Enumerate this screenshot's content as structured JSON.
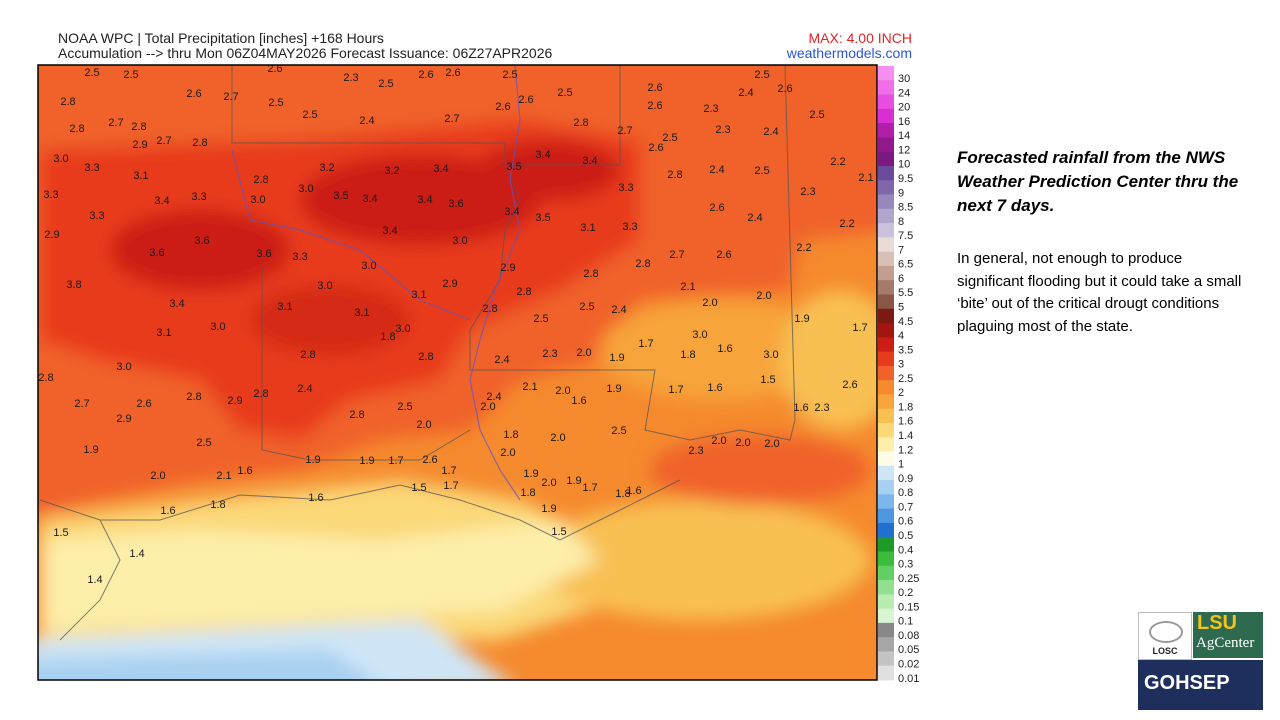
{
  "header": {
    "line1": "NOAA WPC | Total Precipitation [inches] +168 Hours",
    "line2": "Accumulation --> thru Mon 06Z04MAY2026   Forecast Issuance: 06Z27APR2026",
    "max": "MAX: 4.00 INCH",
    "site": "weathermodels.com"
  },
  "side": {
    "heading": "Forecasted rainfall from the NWS Weather Prediction Center thru the next 7 days.",
    "body": "In general, not enough to produce significant flooding but it could take a small ‘bite’ out of the critical drougt conditions plaguing most of the state."
  },
  "logos": {
    "losc": "LOSC",
    "lsu": "LSU",
    "agcenter": "AgCenter",
    "gohsep": "GOHSEP"
  },
  "legend": [
    {
      "label": "30",
      "color": "#f58ff0"
    },
    {
      "label": "24",
      "color": "#f06ee8"
    },
    {
      "label": "20",
      "color": "#e84ee0"
    },
    {
      "label": "16",
      "color": "#d92ed2"
    },
    {
      "label": "14",
      "color": "#b01fa8"
    },
    {
      "label": "12",
      "color": "#901a8c"
    },
    {
      "label": "10",
      "color": "#7a1a80"
    },
    {
      "label": "9.5",
      "color": "#6a4a9a"
    },
    {
      "label": "9",
      "color": "#7e68aa"
    },
    {
      "label": "8.5",
      "color": "#9688bb"
    },
    {
      "label": "8",
      "color": "#b0a6cc"
    },
    {
      "label": "7.5",
      "color": "#cac2dc"
    },
    {
      "label": "7",
      "color": "#e8dcd6"
    },
    {
      "label": "6.5",
      "color": "#d8c0b6"
    },
    {
      "label": "6",
      "color": "#c29e90"
    },
    {
      "label": "5.5",
      "color": "#a67a6a"
    },
    {
      "label": "5",
      "color": "#8a5646"
    },
    {
      "label": "4.5",
      "color": "#7a1a12"
    },
    {
      "label": "4",
      "color": "#a31510"
    },
    {
      "label": "3.5",
      "color": "#cc1e14"
    },
    {
      "label": "3",
      "color": "#e83a1c"
    },
    {
      "label": "2.5",
      "color": "#f0622a"
    },
    {
      "label": "2",
      "color": "#f58a2e"
    },
    {
      "label": "1.8",
      "color": "#f7a43a"
    },
    {
      "label": "1.6",
      "color": "#f8bf52"
    },
    {
      "label": "1.4",
      "color": "#fbd878"
    },
    {
      "label": "1.2",
      "color": "#fdeeaa"
    },
    {
      "label": "1",
      "color": "#fffde8"
    },
    {
      "label": "0.9",
      "color": "#cfe6f7"
    },
    {
      "label": "0.8",
      "color": "#a8d0f0"
    },
    {
      "label": "0.7",
      "color": "#7cb6ea"
    },
    {
      "label": "0.6",
      "color": "#4f96e0"
    },
    {
      "label": "0.5",
      "color": "#2070d0"
    },
    {
      "label": "0.4",
      "color": "#1c9a2a"
    },
    {
      "label": "0.3",
      "color": "#3cbc3c"
    },
    {
      "label": "0.25",
      "color": "#62d062"
    },
    {
      "label": "0.2",
      "color": "#90e090"
    },
    {
      "label": "0.15",
      "color": "#b8ecb0"
    },
    {
      "label": "0.1",
      "color": "#d8f4d0"
    },
    {
      "label": "0.08",
      "color": "#888888"
    },
    {
      "label": "0.05",
      "color": "#a6a6a6"
    },
    {
      "label": "0.02",
      "color": "#c4c4c4"
    },
    {
      "label": "0.01",
      "color": "#e0e0e0"
    }
  ],
  "map_labels": [
    "2.5",
    "2.5",
    "2.6",
    "2.3",
    "2.5",
    "2.6",
    "2.6",
    "2.5",
    "2.5",
    "2.6",
    "2.5",
    "2.4",
    "2.6",
    "2.8",
    "2.6",
    "2.7",
    "2.5",
    "2.5",
    "2.4",
    "2.7",
    "2.6",
    "2.6",
    "2.8",
    "2.7",
    "2.6",
    "2.3",
    "2.3",
    "2.4",
    "2.5",
    "2.8",
    "2.7",
    "2.8",
    "2.9",
    "2.7",
    "2.8",
    "2.5",
    "2.6",
    "3.0",
    "3.3",
    "3.1",
    "3.2",
    "3.2",
    "3.4",
    "3.5",
    "3.4",
    "3.4",
    "2.8",
    "2.4",
    "2.5",
    "2.2",
    "2.1",
    "3.3",
    "3.4",
    "3.3",
    "2.8",
    "3.0",
    "3.0",
    "3.5",
    "3.4",
    "3.4",
    "3.6",
    "3.4",
    "3.5",
    "3.3",
    "2.6",
    "2.3",
    "3.3",
    "3.4",
    "3.1",
    "3.3",
    "2.4",
    "2.2",
    "2.9",
    "3.6",
    "3.6",
    "3.6",
    "3.3",
    "3.0",
    "2.9",
    "2.8",
    "2.8",
    "2.7",
    "2.6",
    "2.2",
    "3.8",
    "3.0",
    "3.0",
    "3.1",
    "2.9",
    "2.8",
    "2.1",
    "2.0",
    "3.4",
    "3.1",
    "3.1",
    "2.8",
    "2.5",
    "2.5",
    "2.4",
    "2.0",
    "1.9",
    "1.7",
    "3.1",
    "3.0",
    "3.0",
    "1.8",
    "3.0",
    "2.8",
    "2.8",
    "2.4",
    "2.3",
    "2.0",
    "1.9",
    "1.7",
    "1.8",
    "1.6",
    "3.0",
    "3.0",
    "2.8",
    "2.8",
    "2.9",
    "2.8",
    "2.4",
    "2.1",
    "2.0",
    "1.9",
    "1.7",
    "1.6",
    "1.5",
    "2.6",
    "2.7",
    "2.6",
    "2.9",
    "2.8",
    "2.5",
    "2.4",
    "2.0",
    "1.6",
    "1.6",
    "2.3",
    "2.5",
    "2.0",
    "1.8",
    "2.0",
    "2.5",
    "1.9",
    "2.0",
    "2.0",
    "2.0",
    "2.0",
    "2.3",
    "1.9",
    "1.9",
    "1.7",
    "2.6",
    "2.0",
    "2.1",
    "1.6",
    "1.7",
    "1.9",
    "2.0",
    "1.9",
    "1.7",
    "1.8",
    "1.6",
    "1.8",
    "1.6",
    "1.5",
    "1.7",
    "1.8",
    "1.9",
    "1.6",
    "1.5",
    "1.5",
    "1.4",
    "1.4"
  ]
}
